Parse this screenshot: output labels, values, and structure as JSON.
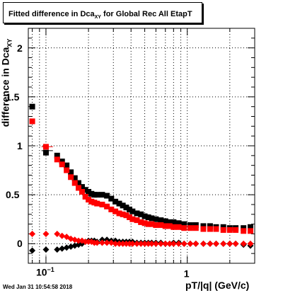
{
  "title": {
    "main": "Fitted difference in Dca",
    "subscript": "XY",
    "suffix": " for Global Rec All EtapT"
  },
  "footer": {
    "timestamp": "Wed Jan 31 10:54:58 2018"
  },
  "axes": {
    "xlabel": "pT/|q| (GeV/c)",
    "ylabel_main": "difference in Dca",
    "ylabel_subscript": "XY",
    "x_tick_labels": [
      {
        "base": "10",
        "exp": "−1"
      },
      {
        "base": "1",
        "exp": ""
      }
    ],
    "y_tick_labels": [
      "0",
      "0.5",
      "1",
      "1.5",
      "2"
    ]
  },
  "colors": {
    "series_black": "#000000",
    "series_red": "#ff0000",
    "grid": "#000000"
  },
  "chart_data": {
    "type": "scatter",
    "x_scale": "log",
    "xlim": [
      0.075,
      3.0
    ],
    "ylim": [
      -0.2,
      2.2
    ],
    "grid": true,
    "x_grid": [
      0.08,
      0.09,
      0.1,
      0.2,
      0.3,
      0.4,
      0.5,
      0.6,
      0.7,
      0.8,
      0.9,
      1.0,
      2.0,
      3.0
    ],
    "y_grid": [
      0,
      0.5,
      1.0,
      1.5,
      2.0
    ],
    "series": [
      {
        "marker": "square",
        "color": "#000000",
        "x": [
          0.08,
          0.1,
          0.12,
          0.13,
          0.14,
          0.15,
          0.16,
          0.17,
          0.18,
          0.19,
          0.2,
          0.21,
          0.22,
          0.23,
          0.25,
          0.27,
          0.29,
          0.31,
          0.33,
          0.35,
          0.37,
          0.39,
          0.41,
          0.44,
          0.47,
          0.5,
          0.53,
          0.56,
          0.6,
          0.65,
          0.7,
          0.75,
          0.8,
          0.87,
          0.95,
          1.05,
          1.15,
          1.3,
          1.45,
          1.6,
          1.8,
          2.0,
          2.2,
          2.5,
          2.8
        ],
        "y": [
          1.4,
          0.93,
          0.9,
          0.84,
          0.8,
          0.73,
          0.67,
          0.62,
          0.58,
          0.55,
          0.53,
          0.51,
          0.5,
          0.5,
          0.5,
          0.49,
          0.46,
          0.43,
          0.41,
          0.39,
          0.37,
          0.35,
          0.33,
          0.31,
          0.3,
          0.28,
          0.27,
          0.26,
          0.25,
          0.24,
          0.23,
          0.22,
          0.22,
          0.21,
          0.2,
          0.19,
          0.19,
          0.18,
          0.18,
          0.17,
          0.17,
          0.16,
          0.16,
          0.16,
          0.17
        ]
      },
      {
        "marker": "square",
        "color": "#ff0000",
        "x": [
          0.08,
          0.1,
          0.12,
          0.13,
          0.14,
          0.15,
          0.16,
          0.17,
          0.18,
          0.19,
          0.2,
          0.21,
          0.22,
          0.23,
          0.25,
          0.27,
          0.29,
          0.31,
          0.33,
          0.35,
          0.37,
          0.39,
          0.41,
          0.44,
          0.47,
          0.5,
          0.53,
          0.56,
          0.6,
          0.65,
          0.7,
          0.75,
          0.8,
          0.87,
          0.95,
          1.05,
          1.15,
          1.3,
          1.45,
          1.6,
          1.8,
          2.0,
          2.2,
          2.5,
          2.8
        ],
        "y": [
          1.25,
          0.99,
          0.86,
          0.81,
          0.75,
          0.68,
          0.62,
          0.57,
          0.53,
          0.48,
          0.45,
          0.43,
          0.42,
          0.41,
          0.4,
          0.38,
          0.35,
          0.33,
          0.31,
          0.3,
          0.29,
          0.27,
          0.25,
          0.24,
          0.22,
          0.21,
          0.2,
          0.2,
          0.19,
          0.19,
          0.18,
          0.18,
          0.17,
          0.17,
          0.16,
          0.16,
          0.16,
          0.15,
          0.15,
          0.15,
          0.14,
          0.14,
          0.14,
          0.13,
          0.13
        ]
      },
      {
        "marker": "diamond",
        "color": "#000000",
        "x": [
          0.08,
          0.1,
          0.12,
          0.13,
          0.14,
          0.15,
          0.16,
          0.17,
          0.18,
          0.19,
          0.2,
          0.21,
          0.22,
          0.23,
          0.25,
          0.27,
          0.29,
          0.31,
          0.33,
          0.35,
          0.37,
          0.39,
          0.41,
          0.44,
          0.47,
          0.5,
          0.53,
          0.56,
          0.6,
          0.65,
          0.7,
          0.75,
          0.8,
          0.87,
          0.95,
          1.05,
          1.15,
          1.3,
          1.45,
          1.6,
          1.8,
          2.0,
          2.2,
          2.5,
          2.8
        ],
        "y": [
          -0.07,
          -0.06,
          -0.06,
          -0.05,
          -0.04,
          -0.03,
          -0.02,
          -0.01,
          0.0,
          0.02,
          0.03,
          0.03,
          0.03,
          0.02,
          0.04,
          0.04,
          0.03,
          0.03,
          0.02,
          0.02,
          0.02,
          0.02,
          0.02,
          0.01,
          0.01,
          0.01,
          0.01,
          0.01,
          0.01,
          0.01,
          0.0,
          0.0,
          0.01,
          0.01,
          0.0,
          0.0,
          0.0,
          0.0,
          0.0,
          0.0,
          0.0,
          0.0,
          0.0,
          -0.01,
          -0.02
        ]
      },
      {
        "marker": "diamond",
        "color": "#ff0000",
        "x": [
          0.08,
          0.1,
          0.12,
          0.13,
          0.14,
          0.15,
          0.16,
          0.17,
          0.18,
          0.19,
          0.2,
          0.21,
          0.22,
          0.23,
          0.25,
          0.27,
          0.29,
          0.31,
          0.33,
          0.35,
          0.37,
          0.39,
          0.41,
          0.44,
          0.47,
          0.5,
          0.53,
          0.56,
          0.6,
          0.65,
          0.7,
          0.75,
          0.8,
          0.87,
          0.95,
          1.05,
          1.15,
          1.3,
          1.45,
          1.6,
          1.8,
          2.0,
          2.2,
          2.5,
          2.8
        ],
        "y": [
          0.1,
          0.1,
          0.1,
          0.08,
          0.07,
          0.05,
          0.04,
          0.03,
          0.03,
          0.02,
          0.02,
          0.02,
          0.01,
          0.01,
          0.01,
          0.01,
          0.01,
          0.0,
          0.0,
          0.0,
          0.0,
          0.0,
          0.0,
          0.0,
          0.0,
          0.0,
          0.0,
          0.0,
          0.0,
          0.0,
          0.0,
          0.0,
          0.0,
          0.0,
          0.0,
          0.0,
          0.0,
          0.0,
          0.0,
          0.0,
          0.0,
          0.0,
          0.0,
          0.0,
          0.0
        ]
      }
    ]
  }
}
